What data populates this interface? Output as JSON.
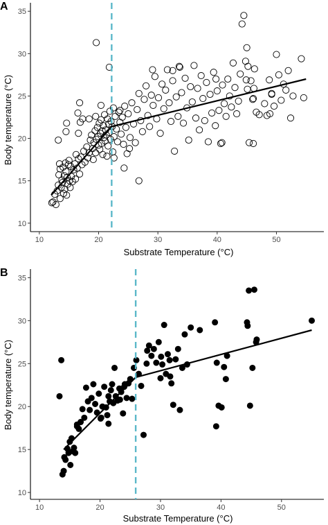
{
  "chart_data": [
    {
      "panel_label": "A",
      "type": "scatter",
      "marker": "open-circle",
      "xlabel": "Substrate Temperature (°C)",
      "ylabel": "Body temperature (°C)",
      "xlim": [
        8.5,
        58
      ],
      "ylim": [
        9,
        36
      ],
      "xticks": [
        10,
        20,
        30,
        40,
        50
      ],
      "yticks": [
        10,
        15,
        20,
        25,
        30,
        35
      ],
      "breakpoint_x": 22.2,
      "breakpoint_style": "dashed",
      "breakpoint_color": "#5bb8c9",
      "fit_line": [
        [
          12,
          13.3
        ],
        [
          22.2,
          21.4
        ],
        [
          55,
          27.0
        ]
      ],
      "grid": false,
      "points": [
        [
          12.1,
          12.4
        ],
        [
          12.3,
          12.5
        ],
        [
          12.6,
          13.4
        ],
        [
          12.8,
          12.2
        ],
        [
          13.0,
          13.8
        ],
        [
          13.2,
          14.5
        ],
        [
          13.3,
          15.7
        ],
        [
          13.4,
          17.0
        ],
        [
          13.5,
          16.4
        ],
        [
          13.5,
          12.9
        ],
        [
          13.7,
          14.2
        ],
        [
          13.8,
          15.1
        ],
        [
          13.9,
          14.8
        ],
        [
          14.0,
          16.6
        ],
        [
          14.1,
          13.5
        ],
        [
          14.2,
          15.6
        ],
        [
          14.3,
          14.0
        ],
        [
          14.4,
          17.1
        ],
        [
          14.5,
          16.1
        ],
        [
          14.6,
          13.3
        ],
        [
          14.7,
          15.4
        ],
        [
          14.8,
          14.6
        ],
        [
          14.9,
          16.9
        ],
        [
          15.0,
          17.4
        ],
        [
          15.1,
          15.0
        ],
        [
          15.2,
          14.2
        ],
        [
          15.3,
          16.7
        ],
        [
          15.4,
          15.5
        ],
        [
          15.6,
          14.9
        ],
        [
          15.8,
          16.3
        ],
        [
          16.0,
          17.0
        ],
        [
          16.1,
          15.2
        ],
        [
          16.2,
          18.1
        ],
        [
          16.4,
          16.5
        ],
        [
          16.6,
          17.6
        ],
        [
          16.8,
          15.8
        ],
        [
          17.0,
          17.8
        ],
        [
          17.2,
          16.9
        ],
        [
          17.5,
          18.5
        ],
        [
          17.7,
          17.2
        ],
        [
          18.0,
          19.0
        ],
        [
          18.2,
          17.7
        ],
        [
          18.4,
          18.3
        ],
        [
          18.6,
          19.8
        ],
        [
          18.8,
          20.4
        ],
        [
          19.0,
          18.8
        ],
        [
          19.1,
          17.5
        ],
        [
          19.2,
          19.5
        ],
        [
          19.4,
          20.9
        ],
        [
          19.5,
          18.3
        ],
        [
          19.6,
          19.9
        ],
        [
          19.8,
          21.3
        ],
        [
          19.9,
          20.2
        ],
        [
          20.0,
          19.2
        ],
        [
          20.1,
          21.8
        ],
        [
          20.2,
          18.7
        ],
        [
          20.3,
          20.6
        ],
        [
          20.4,
          22.2
        ],
        [
          20.5,
          19.4
        ],
        [
          20.6,
          20.9
        ],
        [
          20.7,
          18.1
        ],
        [
          20.8,
          21.5
        ],
        [
          20.9,
          20.1
        ],
        [
          21.0,
          22.8
        ],
        [
          21.1,
          19.7
        ],
        [
          21.2,
          21.0
        ],
        [
          21.3,
          20.4
        ],
        [
          21.4,
          17.9
        ],
        [
          21.5,
          22.3
        ],
        [
          21.6,
          19.1
        ],
        [
          21.7,
          21.7
        ],
        [
          21.8,
          20.7
        ],
        [
          21.9,
          23.2
        ],
        [
          22.0,
          19.9
        ],
        [
          22.1,
          22.0
        ],
        [
          22.3,
          21.4
        ],
        [
          22.4,
          18.4
        ],
        [
          22.5,
          23.6
        ],
        [
          22.6,
          20.2
        ],
        [
          22.8,
          22.6
        ],
        [
          23.0,
          21.1
        ],
        [
          23.2,
          19.6
        ],
        [
          23.4,
          23.1
        ],
        [
          23.6,
          21.9
        ],
        [
          23.8,
          20.5
        ],
        [
          24.0,
          22.5
        ],
        [
          24.2,
          19.3
        ],
        [
          24.4,
          23.8
        ],
        [
          24.6,
          21.3
        ],
        [
          24.8,
          18.2
        ],
        [
          25.0,
          22.9
        ],
        [
          25.3,
          20.1
        ],
        [
          25.6,
          24.2
        ],
        [
          25.9,
          21.7
        ],
        [
          26.2,
          19.5
        ],
        [
          26.5,
          23.4
        ],
        [
          26.8,
          25.3
        ],
        [
          27.1,
          22.1
        ],
        [
          27.4,
          20.8
        ],
        [
          27.7,
          24.6
        ],
        [
          28.0,
          26.2
        ],
        [
          28.3,
          22.7
        ],
        [
          28.6,
          21.4
        ],
        [
          28.9,
          25.1
        ],
        [
          29.2,
          23.9
        ],
        [
          29.5,
          27.3
        ],
        [
          29.8,
          22.3
        ],
        [
          30.1,
          24.8
        ],
        [
          30.4,
          20.6
        ],
        [
          30.7,
          26.4
        ],
        [
          31.0,
          23.5
        ],
        [
          31.3,
          25.7
        ],
        [
          31.6,
          28.1
        ],
        [
          31.9,
          24.2
        ],
        [
          32.2,
          22.0
        ],
        [
          32.5,
          26.8
        ],
        [
          32.8,
          18.5
        ],
        [
          33.1,
          24.9
        ],
        [
          33.4,
          22.6
        ],
        [
          33.7,
          28.4
        ],
        [
          34.0,
          25.4
        ],
        [
          34.3,
          21.8
        ],
        [
          34.6,
          27.1
        ],
        [
          34.9,
          23.6
        ],
        [
          35.2,
          19.8
        ],
        [
          35.5,
          26.1
        ],
        [
          35.8,
          24.3
        ],
        [
          36.1,
          28.6
        ],
        [
          36.4,
          22.4
        ],
        [
          36.7,
          25.9
        ],
        [
          37.0,
          21.0
        ],
        [
          37.3,
          27.4
        ],
        [
          37.6,
          24.7
        ],
        [
          37.9,
          22.1
        ],
        [
          38.2,
          26.6
        ],
        [
          38.5,
          19.6
        ],
        [
          38.8,
          25.2
        ],
        [
          39.1,
          23.0
        ],
        [
          39.4,
          27.8
        ],
        [
          39.7,
          21.5
        ],
        [
          40.0,
          25.6
        ],
        [
          40.3,
          23.3
        ],
        [
          40.6,
          19.4
        ],
        [
          40.9,
          26.3
        ],
        [
          41.2,
          24.1
        ],
        [
          41.5,
          22.6
        ],
        [
          41.8,
          27.0
        ],
        [
          42.1,
          25.0
        ],
        [
          42.4,
          23.7
        ],
        [
          42.7,
          28.9
        ],
        [
          43.0,
          26.0
        ],
        [
          43.3,
          22.9
        ],
        [
          43.6,
          24.4
        ],
        [
          43.9,
          27.6
        ],
        [
          44.2,
          33.5
        ],
        [
          44.5,
          34.5
        ],
        [
          44.8,
          29.1
        ],
        [
          45.1,
          25.8
        ],
        [
          45.4,
          19.5
        ],
        [
          45.7,
          26.8
        ],
        [
          46.0,
          24.6
        ],
        [
          46.3,
          28.2
        ],
        [
          46.6,
          23.1
        ],
        [
          48.0,
          24.1
        ],
        [
          48.4,
          22.7
        ],
        [
          48.8,
          26.9
        ],
        [
          49.2,
          25.2
        ],
        [
          49.6,
          23.8
        ],
        [
          50.0,
          29.9
        ],
        [
          50.4,
          27.5
        ],
        [
          50.8,
          24.5
        ],
        [
          51.2,
          26.4
        ],
        [
          51.6,
          25.7
        ],
        [
          52.0,
          28.0
        ],
        [
          52.4,
          22.4
        ],
        [
          52.8,
          25.0
        ],
        [
          54.2,
          29.4
        ],
        [
          54.6,
          24.8
        ],
        [
          19.6,
          31.3
        ],
        [
          21.8,
          28.4
        ],
        [
          29.1,
          28.1
        ],
        [
          32.5,
          28.0
        ],
        [
          33.6,
          28.5
        ],
        [
          39.8,
          27.0
        ],
        [
          45.2,
          28.5
        ],
        [
          45.0,
          30.7
        ],
        [
          44.9,
          26.9
        ],
        [
          14.5,
          20.8
        ],
        [
          14.6,
          21.8
        ],
        [
          13.2,
          19.8
        ],
        [
          16.6,
          20.6
        ],
        [
          16.9,
          21.9
        ],
        [
          17.3,
          22.3
        ],
        [
          16.8,
          24.2
        ],
        [
          16.5,
          23.0
        ],
        [
          18.4,
          22.3
        ],
        [
          19.5,
          22.6
        ],
        [
          20.4,
          23.9
        ],
        [
          23.6,
          23.3
        ],
        [
          24.3,
          16.5
        ],
        [
          22.6,
          17.7
        ],
        [
          26.8,
          15.0
        ],
        [
          25.2,
          18.8
        ],
        [
          40.8,
          19.5
        ],
        [
          46.1,
          19.4
        ],
        [
          47.1,
          22.8
        ],
        [
          48.9,
          22.9
        ],
        [
          49.2,
          25.3
        ],
        [
          46.2,
          25.9
        ],
        [
          46.1,
          24.7
        ]
      ]
    },
    {
      "panel_label": "B",
      "type": "scatter",
      "marker": "filled-circle",
      "xlabel": "Substrate Temperature (°C)",
      "ylabel": "Body temperature (°C)",
      "xlim": [
        8.5,
        57
      ],
      "ylim": [
        9.2,
        36
      ],
      "xticks": [
        10,
        20,
        30,
        40,
        50
      ],
      "yticks": [
        10,
        15,
        20,
        25,
        30,
        35
      ],
      "breakpoint_x": 25.9,
      "breakpoint_style": "dashed",
      "breakpoint_color": "#5bb8c9",
      "fit_line": [
        [
          14,
          15.0
        ],
        [
          25.9,
          23.4
        ],
        [
          55,
          28.9
        ]
      ],
      "grid": false,
      "points": [
        [
          13.3,
          21.2
        ],
        [
          13.6,
          25.4
        ],
        [
          13.8,
          12.1
        ],
        [
          14.0,
          12.5
        ],
        [
          14.1,
          14.1
        ],
        [
          14.3,
          13.8
        ],
        [
          14.6,
          15.1
        ],
        [
          14.8,
          14.6
        ],
        [
          15.0,
          15.9
        ],
        [
          15.1,
          13.2
        ],
        [
          15.3,
          16.3
        ],
        [
          15.5,
          14.8
        ],
        [
          15.7,
          15.2
        ],
        [
          15.9,
          14.6
        ],
        [
          16.2,
          17.7
        ],
        [
          16.5,
          17.4
        ],
        [
          16.8,
          18.2
        ],
        [
          17.1,
          19.7
        ],
        [
          17.4,
          18.7
        ],
        [
          17.7,
          22.2
        ],
        [
          18.0,
          20.6
        ],
        [
          18.3,
          19.6
        ],
        [
          18.6,
          21.0
        ],
        [
          18.9,
          22.6
        ],
        [
          19.2,
          20.3
        ],
        [
          19.5,
          19.3
        ],
        [
          19.8,
          21.5
        ],
        [
          20.1,
          18.6
        ],
        [
          20.4,
          20.0
        ],
        [
          20.7,
          22.3
        ],
        [
          21.0,
          19.9
        ],
        [
          21.2,
          19.0
        ],
        [
          21.4,
          21.2
        ],
        [
          21.6,
          20.6
        ],
        [
          21.8,
          21.9
        ],
        [
          22.0,
          22.6
        ],
        [
          22.2,
          20.4
        ],
        [
          22.4,
          24.5
        ],
        [
          22.6,
          21.2
        ],
        [
          22.9,
          20.7
        ],
        [
          23.2,
          22.1
        ],
        [
          23.5,
          21.7
        ],
        [
          23.8,
          19.2
        ],
        [
          24.1,
          22.6
        ],
        [
          24.4,
          21.0
        ],
        [
          24.7,
          22.7
        ],
        [
          25.0,
          23.2
        ],
        [
          25.3,
          20.9
        ],
        [
          25.6,
          24.5
        ],
        [
          26.0,
          25.4
        ],
        [
          26.4,
          23.8
        ],
        [
          26.8,
          22.4
        ],
        [
          27.2,
          16.7
        ],
        [
          27.7,
          25.0
        ],
        [
          28.1,
          27.1
        ],
        [
          28.5,
          25.9
        ],
        [
          28.9,
          26.7
        ],
        [
          29.3,
          25.1
        ],
        [
          29.7,
          27.5
        ],
        [
          30.0,
          23.3
        ],
        [
          30.3,
          24.9
        ],
        [
          30.6,
          29.5
        ],
        [
          30.9,
          23.8
        ],
        [
          31.2,
          26.1
        ],
        [
          31.5,
          25.4
        ],
        [
          31.8,
          22.7
        ],
        [
          32.1,
          20.2
        ],
        [
          32.5,
          25.5
        ],
        [
          32.9,
          26.7
        ],
        [
          33.2,
          19.6
        ],
        [
          33.6,
          24.5
        ],
        [
          34.0,
          28.4
        ],
        [
          34.4,
          24.9
        ],
        [
          35.0,
          29.2
        ],
        [
          36.5,
          28.9
        ],
        [
          39.0,
          29.8
        ],
        [
          39.3,
          25.1
        ],
        [
          39.6,
          20.1
        ],
        [
          40.1,
          19.9
        ],
        [
          40.5,
          24.6
        ],
        [
          40.8,
          23.2
        ],
        [
          41.0,
          25.9
        ],
        [
          44.3,
          29.8
        ],
        [
          44.6,
          33.5
        ],
        [
          44.8,
          20.1
        ],
        [
          45.2,
          24.5
        ],
        [
          45.5,
          33.6
        ],
        [
          45.8,
          27.5
        ],
        [
          45.9,
          27.8
        ],
        [
          55.0,
          30.0
        ],
        [
          20.2,
          18.7
        ],
        [
          21.4,
          18.0
        ],
        [
          23.3,
          20.8
        ],
        [
          27.8,
          26.5
        ],
        [
          30.1,
          25.8
        ],
        [
          31.6,
          23.5
        ],
        [
          39.2,
          17.7
        ],
        [
          44.4,
          29.4
        ],
        [
          16.2,
          17.9
        ],
        [
          24.0,
          22.3
        ]
      ]
    }
  ]
}
